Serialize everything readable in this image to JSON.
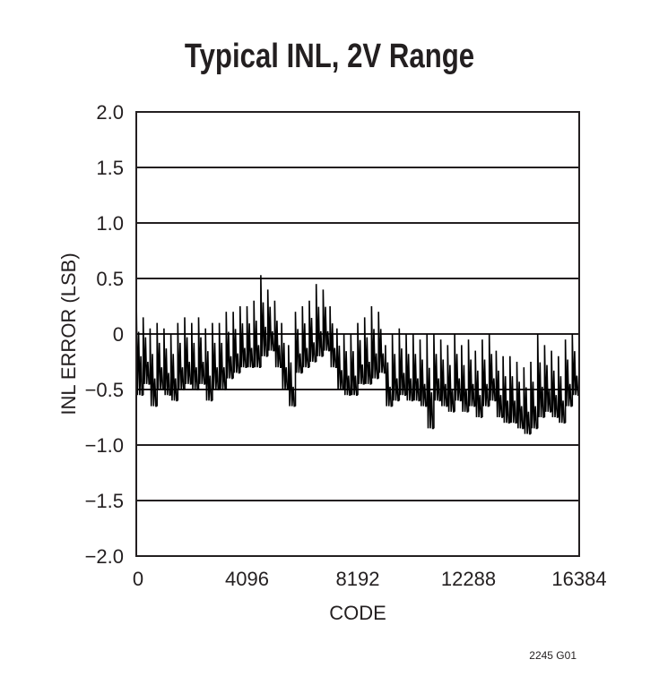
{
  "chart_data": {
    "type": "line",
    "title": "Typical INL, 2V Range",
    "xlabel": "CODE",
    "ylabel": "INL ERROR (LSB)",
    "xlim": [
      0,
      16384
    ],
    "ylim": [
      -2.0,
      2.0
    ],
    "xticks": [
      "0",
      "4096",
      "8192",
      "12288",
      "16384"
    ],
    "xtick_values": [
      0,
      4096,
      8192,
      12288,
      16384
    ],
    "yticks": [
      "2.0",
      "1.5",
      "1.0",
      "0.5",
      "0",
      "−0.5",
      "−1.0",
      "−1.5",
      "−2.0"
    ],
    "ytick_values": [
      2.0,
      1.5,
      1.0,
      0.5,
      0,
      -0.5,
      -1.0,
      -1.5,
      -2.0
    ],
    "grid": "horizontal",
    "trace_color": "#000000",
    "bin_width_codes": 256,
    "envelope_max": [
      0.35,
      0.15,
      0.05,
      0.1,
      0.05,
      0.0,
      0.1,
      0.15,
      0.1,
      0.15,
      0.05,
      0.1,
      0.1,
      0.2,
      0.2,
      0.25,
      0.25,
      0.3,
      0.53,
      0.4,
      0.3,
      0.1,
      -0.1,
      0.2,
      0.25,
      0.3,
      0.45,
      0.4,
      0.25,
      0.05,
      0.0,
      0.0,
      0.1,
      0.15,
      0.25,
      0.2,
      -0.1,
      0.0,
      0.05,
      0.0,
      0.0,
      -0.05,
      0.0,
      0.0,
      -0.05,
      -0.1,
      0.0,
      -0.1,
      -0.05,
      -0.15,
      -0.05,
      0.0,
      -0.15,
      -0.2,
      -0.2,
      -0.25,
      -0.3,
      -0.25,
      0.0,
      -0.1,
      -0.15,
      -0.2,
      -0.05,
      0.0
    ],
    "envelope_min": [
      -0.55,
      -0.45,
      -0.65,
      -0.5,
      -0.55,
      -0.6,
      -0.5,
      -0.45,
      -0.5,
      -0.45,
      -0.6,
      -0.5,
      -0.5,
      -0.4,
      -0.35,
      -0.3,
      -0.3,
      -0.3,
      -0.2,
      -0.15,
      -0.3,
      -0.5,
      -0.65,
      -0.35,
      -0.3,
      -0.25,
      -0.2,
      -0.15,
      -0.3,
      -0.5,
      -0.55,
      -0.55,
      -0.45,
      -0.45,
      -0.4,
      -0.35,
      -0.65,
      -0.6,
      -0.55,
      -0.6,
      -0.6,
      -0.65,
      -0.85,
      -0.6,
      -0.65,
      -0.7,
      -0.6,
      -0.7,
      -0.65,
      -0.75,
      -0.65,
      -0.6,
      -0.75,
      -0.8,
      -0.8,
      -0.85,
      -0.9,
      -0.85,
      -0.75,
      -0.7,
      -0.75,
      -0.8,
      -0.65,
      -0.55
    ],
    "footnote": "2245 G01"
  }
}
